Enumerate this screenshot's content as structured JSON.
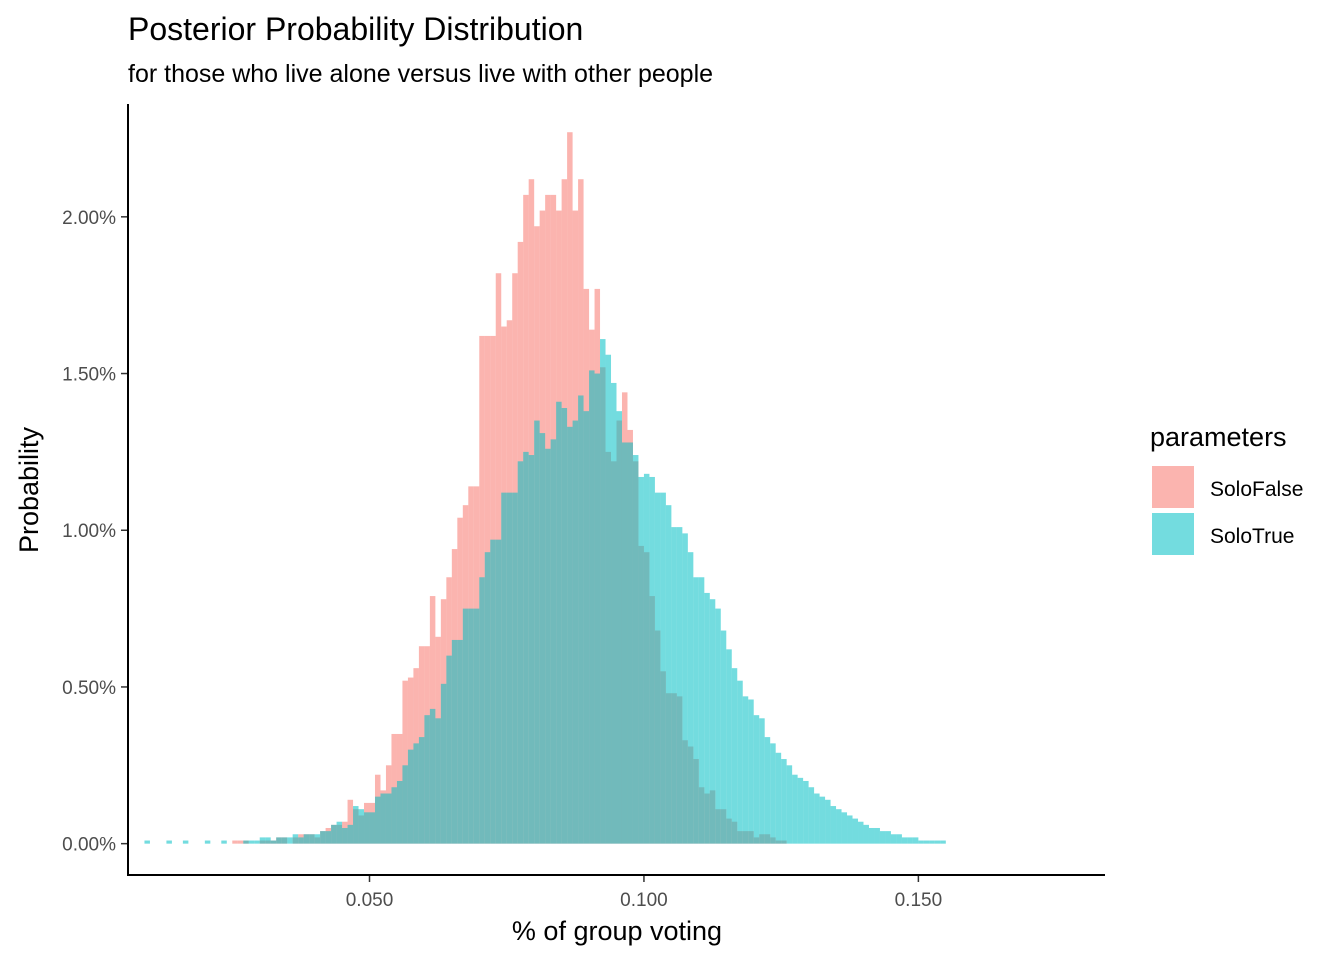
{
  "chart_data": {
    "type": "histogram",
    "title": "Posterior Probability Distribution",
    "subtitle": "for those who live alone versus live with other people",
    "xlabel": "% of group voting",
    "ylabel": "Probability",
    "xlim": [
      0.006,
      0.184
    ],
    "ylim": [
      -0.001,
      0.0236
    ],
    "bin_width": 0.001,
    "bin_start": 0.009,
    "x_ticks": [
      0.05,
      0.1,
      0.15
    ],
    "x_tick_labels": [
      "0.050",
      "0.100",
      "0.150"
    ],
    "y_ticks": [
      0,
      0.005,
      0.01,
      0.015,
      0.02
    ],
    "y_tick_labels": [
      "0.00%",
      "0.50%",
      "1.00%",
      "1.50%",
      "2.00%"
    ],
    "grid": false,
    "legend": {
      "title": "parameters",
      "position": "right",
      "entries": [
        "SoloFalse",
        "SoloTrue"
      ]
    },
    "colors": {
      "SoloFalse": "#F8766D",
      "SoloTrue": "#00BFC4",
      "axis": "#000000",
      "tick": "#333333"
    },
    "series": [
      {
        "name": "SoloFalse",
        "values": [
          0,
          0,
          0,
          0,
          0,
          0,
          0,
          0,
          0,
          0,
          0,
          0,
          0,
          0,
          0,
          0,
          0.0001,
          0.0001,
          0.0001,
          0,
          0,
          0.0001,
          0.0001,
          0.0001,
          0.0002,
          0.0002,
          0,
          0.0002,
          0.0003,
          0.0003,
          0.0003,
          0.0002,
          0.0004,
          0.0005,
          0.0006,
          0.0006,
          0.0007,
          0.0014,
          0.0011,
          0.0009,
          0.0013,
          0.0013,
          0.0022,
          0.0017,
          0.0025,
          0.0035,
          0.0035,
          0.0052,
          0.0053,
          0.0056,
          0.0063,
          0.0063,
          0.0079,
          0.0066,
          0.0078,
          0.0085,
          0.0094,
          0.0104,
          0.0108,
          0.0114,
          0.0114,
          0.0162,
          0.0162,
          0.0162,
          0.0182,
          0.0165,
          0.0167,
          0.0182,
          0.0192,
          0.0207,
          0.0212,
          0.0197,
          0.0202,
          0.0207,
          0.0207,
          0.0202,
          0.0212,
          0.0227,
          0.0202,
          0.0212,
          0.0177,
          0.0164,
          0.0177,
          0.0152,
          0.0125,
          0.0122,
          0.0135,
          0.0144,
          0.0132,
          0.0122,
          0.0095,
          0.0093,
          0.0079,
          0.0068,
          0.0055,
          0.0048,
          0.0048,
          0.0047,
          0.0033,
          0.0031,
          0.0027,
          0.0018,
          0.0016,
          0.0017,
          0.0011,
          0.0011,
          0.0008,
          0.0007,
          0.0004,
          0.0004,
          0.0004,
          0.0002,
          0.0003,
          0.0003,
          0.0002,
          0.0001,
          0.0001,
          0,
          0,
          0,
          0,
          0,
          0,
          0,
          0,
          0,
          0,
          0,
          0,
          0,
          0,
          0,
          0,
          0,
          0,
          0,
          0,
          0,
          0,
          0,
          0,
          0,
          0,
          0,
          0,
          0,
          0,
          0,
          0,
          0,
          0,
          0,
          0,
          0,
          0,
          0,
          0,
          0,
          0,
          0,
          0,
          0,
          0,
          0,
          0,
          0,
          0,
          0,
          0,
          0,
          0,
          0,
          0,
          0,
          0,
          0,
          0
        ]
      },
      {
        "name": "SoloTrue",
        "values": [
          0.0001,
          0,
          0,
          0,
          0.0001,
          0,
          0,
          0.0001,
          0,
          0,
          0,
          0.0001,
          0,
          0,
          0.0001,
          0,
          0,
          0,
          0.0001,
          0.0001,
          0.0001,
          0.0002,
          0.0002,
          0.0001,
          0.0002,
          0.0002,
          0.0002,
          0.0003,
          0.0002,
          0.0003,
          0.0003,
          0.0003,
          0.0004,
          0.0004,
          0.0006,
          0.0007,
          0.0005,
          0.0006,
          0.0012,
          0.0011,
          0.001,
          0.001,
          0.0015,
          0.0016,
          0.0016,
          0.0018,
          0.002,
          0.0025,
          0.003,
          0.0032,
          0.0034,
          0.0041,
          0.0043,
          0.004,
          0.0051,
          0.006,
          0.0065,
          0.0065,
          0.0075,
          0.0075,
          0.0075,
          0.0085,
          0.0093,
          0.0097,
          0.0097,
          0.0112,
          0.0112,
          0.0112,
          0.0122,
          0.0125,
          0.0124,
          0.0135,
          0.0131,
          0.0126,
          0.0129,
          0.0141,
          0.0139,
          0.0133,
          0.0135,
          0.0143,
          0.0138,
          0.0151,
          0.015,
          0.0161,
          0.0156,
          0.0147,
          0.0138,
          0.0128,
          0.0128,
          0.0124,
          0.0117,
          0.0118,
          0.0117,
          0.0112,
          0.0112,
          0.0108,
          0.0101,
          0.0101,
          0.0099,
          0.0093,
          0.0085,
          0.0085,
          0.008,
          0.0078,
          0.0075,
          0.0068,
          0.0062,
          0.0056,
          0.0052,
          0.0047,
          0.0046,
          0.0041,
          0.004,
          0.0034,
          0.0032,
          0.0029,
          0.0027,
          0.0025,
          0.0022,
          0.0021,
          0.002,
          0.0018,
          0.0016,
          0.0015,
          0.0014,
          0.0012,
          0.0011,
          0.001,
          0.0009,
          0.0008,
          0.0007,
          0.0006,
          0.0005,
          0.0005,
          0.0004,
          0.0004,
          0.0003,
          0.0003,
          0.0002,
          0.0002,
          0.0002,
          0.0001,
          0.0001,
          0.0001,
          0.0001,
          0.0001,
          0,
          0,
          0,
          0,
          0,
          0,
          0,
          0,
          0,
          0,
          0,
          0,
          0,
          0,
          0,
          0,
          0,
          0,
          0,
          0,
          0,
          0,
          0,
          0
        ]
      }
    ]
  }
}
